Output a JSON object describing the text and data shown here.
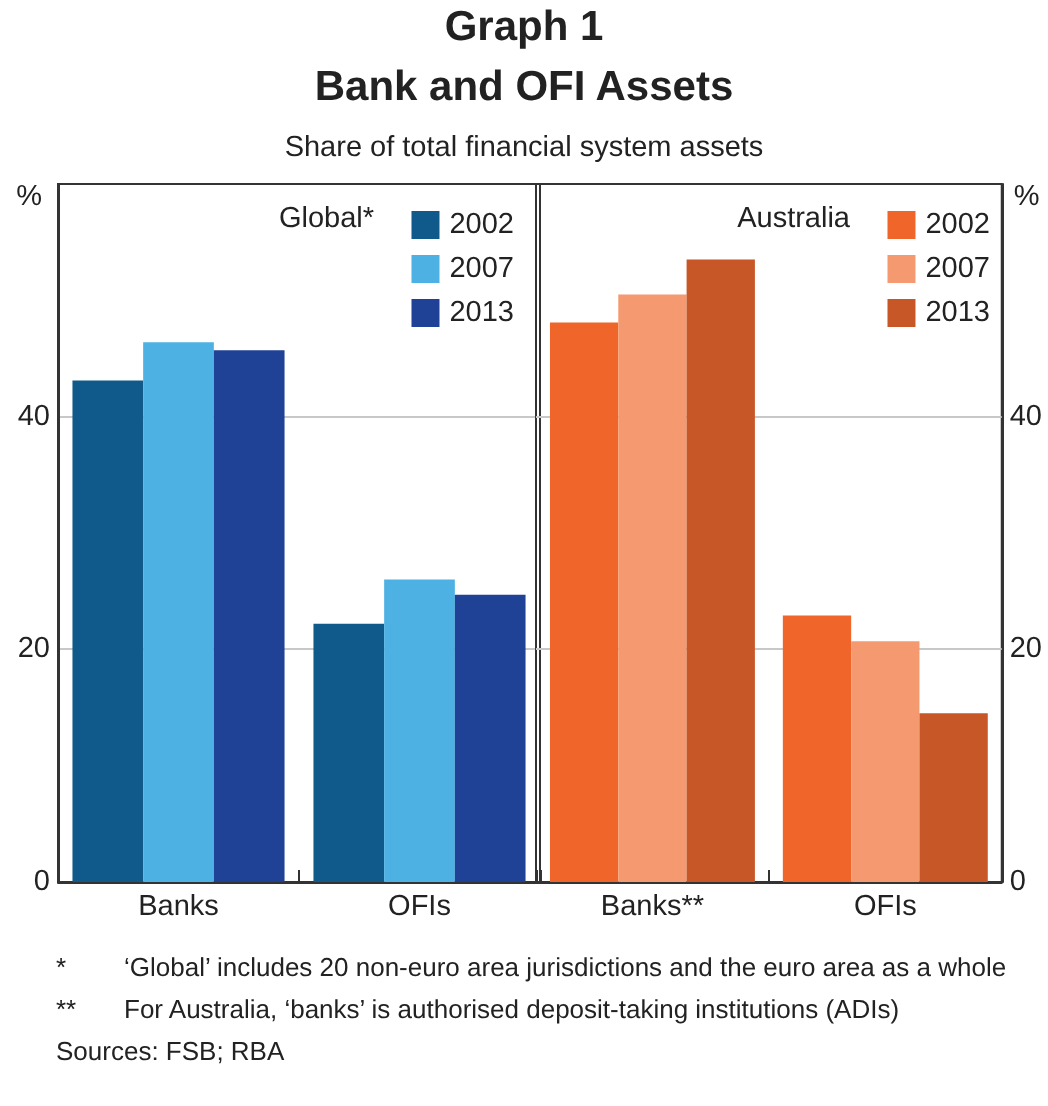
{
  "chart_data": [
    {
      "type": "other",
      "title": "Graph 1",
      "subtitle": "Bank and OFI Assets",
      "annotations": [
        "Share of total financial system assets",
        "*\t‘Global’ includes 20 non-euro area jurisdictions and the euro area as a whole",
        "**\tFor Australia, ‘banks’ is authorised deposit-taking institutions (ADIs)",
        "Sources:  FSB; RBA"
      ]
    },
    {
      "type": "bar",
      "title": "Global*",
      "ylabel": "%",
      "categories": [
        "Banks",
        "OFIs"
      ],
      "ylim": [
        0,
        60
      ],
      "yticks": [
        0,
        20,
        40
      ],
      "grid": "y",
      "legend": "top right",
      "series": [
        {
          "name": "2002",
          "color": "#0f5a8a",
          "values": [
            43.1,
            22.2
          ]
        },
        {
          "name": "2007",
          "color": "#4db2e3",
          "values": [
            46.4,
            26.0
          ]
        },
        {
          "name": "2013",
          "color": "#1f4196",
          "values": [
            45.7,
            24.7
          ]
        }
      ]
    },
    {
      "type": "bar",
      "title": "Australia",
      "ylabel": "%",
      "categories": [
        "Banks**",
        "OFIs"
      ],
      "ylim": [
        0,
        60
      ],
      "yticks": [
        0,
        20,
        40
      ],
      "grid": "y",
      "legend": "top right",
      "series": [
        {
          "name": "2002",
          "color": "#f0662a",
          "values": [
            48.1,
            22.9
          ]
        },
        {
          "name": "2007",
          "color": "#f59a70",
          "values": [
            50.5,
            20.7
          ]
        },
        {
          "name": "2013",
          "color": "#c85727",
          "values": [
            53.5,
            14.5
          ]
        }
      ]
    }
  ]
}
